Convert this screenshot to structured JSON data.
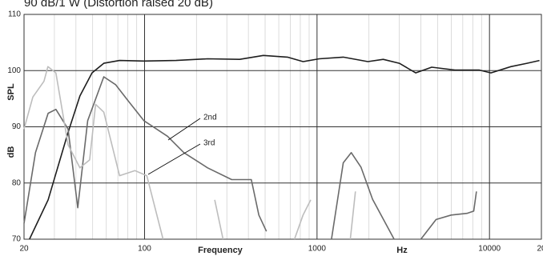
{
  "chart_data": {
    "type": "line",
    "title": "90 dB/1 W (Distortion raised 20 dB)",
    "x_label_left": "Frequency",
    "x_label_right": "Hz",
    "y_label_top": "SPL",
    "y_label_bottom": "dB",
    "log_x": true,
    "grid": true,
    "minor_grid": true,
    "xlim": [
      20,
      20000
    ],
    "ylim": [
      70,
      110
    ],
    "xticks": [
      20,
      100,
      1000,
      10000,
      {
        "value": 20000,
        "label": "20"
      }
    ],
    "yticks": [
      70,
      80,
      90,
      100,
      110
    ],
    "series": [
      {
        "color": "#1e1e1e",
        "x": [
          21.5,
          27.6,
          36,
          42.2,
          49.6,
          58,
          71.6,
          99,
          152,
          232,
          356,
          488,
          674,
          830,
          1030,
          1420,
          1970,
          2420,
          3000,
          3730,
          4620,
          6300,
          8700,
          10200,
          13300,
          16500,
          19500
        ],
        "values": [
          70,
          77,
          89,
          95.5,
          99.6,
          101.3,
          101.8,
          101.7,
          101.8,
          102.1,
          102,
          102.7,
          102.4,
          101.6,
          102.1,
          102.4,
          101.6,
          102,
          101.3,
          99.6,
          100.6,
          100.1,
          100.1,
          99.6,
          100.7,
          101.3,
          101.8
        ]
      },
      {
        "name": "2nd",
        "color": "#6a6a6a",
        "x": [
          20,
          23.3,
          27.6,
          30.6,
          36,
          41,
          46.8,
          58,
          67.9,
          80,
          99,
          136,
          169,
          232,
          320,
          416,
          460,
          509,
          null,
          1213,
          1420,
          1580,
          1800,
          2100,
          2800,
          null,
          4000,
          4900,
          6000,
          7400,
          8100,
          8400
        ],
        "values": [
          72.8,
          85.4,
          92.4,
          93.1,
          89.6,
          75.6,
          91.1,
          98.9,
          97.5,
          94.7,
          91.1,
          88.3,
          85.4,
          82.7,
          80.6,
          80.6,
          74.3,
          71.4,
          null,
          70,
          83.6,
          85.4,
          82.8,
          77.1,
          70,
          null,
          70,
          73.5,
          74.3,
          74.6,
          75,
          78.5
        ]
      },
      {
        "name": "3rd",
        "color": "#bdbdbd",
        "x": [
          20,
          22.5,
          26.1,
          27.5,
          30.6,
          36,
          42.2,
          48,
          52,
          58,
          71.6,
          88,
          103,
          128,
          null,
          255,
          285,
          null,
          740,
          830,
          920,
          null,
          1560,
          1670
        ],
        "values": [
          89.6,
          95.3,
          98.1,
          100.7,
          99.6,
          86.8,
          82.7,
          84.1,
          94,
          92.6,
          81.3,
          82.2,
          81.3,
          70,
          null,
          77,
          70,
          null,
          70,
          74.3,
          77,
          null,
          70,
          78.5
        ]
      }
    ]
  }
}
